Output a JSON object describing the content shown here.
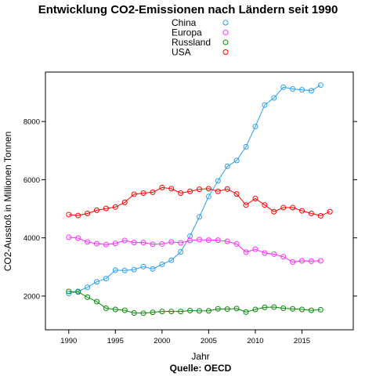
{
  "chart_data": {
    "type": "line",
    "title": "Entwicklung CO2-Emissionen nach Ländern seit 1990",
    "caption": "Quelle: OECD",
    "xlabel": "Jahr",
    "ylabel": "CO2-Ausstoß in Millionen Tonnen",
    "xlim": [
      1987.5,
      2020.5
    ],
    "ylim": [
      840,
      9700
    ],
    "xticks": [
      1990,
      1995,
      2000,
      2005,
      2010,
      2015
    ],
    "yticks": [
      2000,
      4000,
      6000,
      8000
    ],
    "grid": false,
    "legend_position": "top",
    "series": [
      {
        "name": "China",
        "color": "#2b9ef2",
        "points": [
          [
            1990,
            2090
          ],
          [
            1991,
            2160
          ],
          [
            1992,
            2300
          ],
          [
            1993,
            2490
          ],
          [
            1994,
            2600
          ],
          [
            1995,
            2890
          ],
          [
            1996,
            2880
          ],
          [
            1997,
            2910
          ],
          [
            1998,
            3010
          ],
          [
            1999,
            2930
          ],
          [
            2000,
            3090
          ],
          [
            2001,
            3230
          ],
          [
            2002,
            3520
          ],
          [
            2003,
            4060
          ],
          [
            2004,
            4720
          ],
          [
            2005,
            5420
          ],
          [
            2006,
            5960
          ],
          [
            2007,
            6460
          ],
          [
            2008,
            6660
          ],
          [
            2009,
            7130
          ],
          [
            2010,
            7830
          ],
          [
            2011,
            8570
          ],
          [
            2012,
            8810
          ],
          [
            2013,
            9180
          ],
          [
            2014,
            9120
          ],
          [
            2015,
            9090
          ],
          [
            2016,
            9060
          ],
          [
            2017,
            9250
          ]
        ]
      },
      {
        "name": "Europa",
        "color": "#ff2bff",
        "points": [
          [
            1990,
            4020
          ],
          [
            1991,
            3990
          ],
          [
            1992,
            3860
          ],
          [
            1993,
            3800
          ],
          [
            1994,
            3770
          ],
          [
            1995,
            3810
          ],
          [
            1996,
            3910
          ],
          [
            1997,
            3840
          ],
          [
            1998,
            3840
          ],
          [
            1999,
            3780
          ],
          [
            2000,
            3790
          ],
          [
            2001,
            3860
          ],
          [
            2002,
            3830
          ],
          [
            2003,
            3910
          ],
          [
            2004,
            3940
          ],
          [
            2005,
            3920
          ],
          [
            2006,
            3920
          ],
          [
            2007,
            3880
          ],
          [
            2008,
            3790
          ],
          [
            2009,
            3510
          ],
          [
            2010,
            3610
          ],
          [
            2011,
            3480
          ],
          [
            2012,
            3440
          ],
          [
            2013,
            3350
          ],
          [
            2014,
            3170
          ],
          [
            2015,
            3210
          ],
          [
            2016,
            3200
          ],
          [
            2017,
            3210
          ]
        ]
      },
      {
        "name": "Russland",
        "color": "#0a8a0a",
        "points": [
          [
            1990,
            2160
          ],
          [
            1991,
            2140
          ],
          [
            1992,
            1960
          ],
          [
            1993,
            1810
          ],
          [
            1994,
            1580
          ],
          [
            1995,
            1540
          ],
          [
            1996,
            1510
          ],
          [
            1997,
            1420
          ],
          [
            1998,
            1410
          ],
          [
            1999,
            1440
          ],
          [
            2000,
            1470
          ],
          [
            2001,
            1470
          ],
          [
            2002,
            1470
          ],
          [
            2003,
            1500
          ],
          [
            2004,
            1490
          ],
          [
            2005,
            1490
          ],
          [
            2006,
            1560
          ],
          [
            2007,
            1550
          ],
          [
            2008,
            1570
          ],
          [
            2009,
            1450
          ],
          [
            2010,
            1540
          ],
          [
            2011,
            1610
          ],
          [
            2012,
            1620
          ],
          [
            2013,
            1580
          ],
          [
            2014,
            1560
          ],
          [
            2015,
            1540
          ],
          [
            2016,
            1510
          ],
          [
            2017,
            1530
          ]
        ]
      },
      {
        "name": "USA",
        "color": "#ff0000",
        "points": [
          [
            1990,
            4800
          ],
          [
            1991,
            4770
          ],
          [
            1992,
            4840
          ],
          [
            1993,
            4950
          ],
          [
            1994,
            5010
          ],
          [
            1995,
            5060
          ],
          [
            1996,
            5220
          ],
          [
            1997,
            5500
          ],
          [
            1998,
            5540
          ],
          [
            1999,
            5570
          ],
          [
            2000,
            5730
          ],
          [
            2001,
            5690
          ],
          [
            2002,
            5540
          ],
          [
            2003,
            5600
          ],
          [
            2004,
            5670
          ],
          [
            2005,
            5690
          ],
          [
            2006,
            5600
          ],
          [
            2007,
            5680
          ],
          [
            2008,
            5510
          ],
          [
            2009,
            5130
          ],
          [
            2010,
            5350
          ],
          [
            2011,
            5130
          ],
          [
            2012,
            4900
          ],
          [
            2013,
            5040
          ],
          [
            2014,
            5040
          ],
          [
            2015,
            4930
          ],
          [
            2016,
            4840
          ],
          [
            2017,
            4760
          ],
          [
            2018,
            4900
          ]
        ]
      }
    ]
  }
}
